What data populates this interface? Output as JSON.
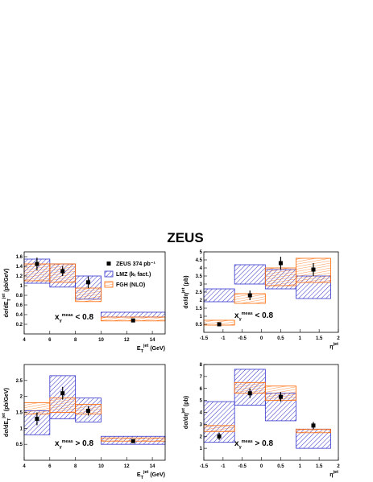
{
  "title": "ZEUS",
  "chart_data": [
    {
      "type": "histogram",
      "bins": [
        4,
        6,
        8,
        10,
        15
      ],
      "xlim": [
        4,
        15
      ],
      "xticks": [
        4,
        6,
        8,
        10,
        12,
        14
      ],
      "ylim": [
        0,
        1.7
      ],
      "yticks": [
        0.2,
        0.4,
        0.6,
        0.8,
        1,
        1.2,
        1.4,
        1.6
      ],
      "x_label": [
        "E",
        "T",
        "jet",
        " (GeV)"
      ],
      "y_label": [
        "dσ/dE",
        "T",
        "jet",
        " (pb/GeV)"
      ],
      "annotation": [
        "x",
        "γ",
        "meas",
        " < 0.8"
      ],
      "series": [
        {
          "name": "LMZ (kₜ fact.)",
          "color": "#3333cc",
          "low": [
            1.05,
            0.97,
            0.72,
            0.35
          ],
          "high": [
            1.55,
            1.45,
            1.2,
            0.45
          ]
        },
        {
          "name": "FGH (NLO)",
          "color": "#ff6600",
          "low": [
            1.1,
            1.07,
            0.67,
            0.27
          ],
          "high": [
            1.45,
            1.45,
            0.95,
            0.35
          ]
        },
        {
          "name": "ZEUS 374 pb⁻¹",
          "color": "#000000",
          "values": [
            1.45,
            1.3,
            1.07,
            0.28
          ],
          "errors": [
            0.13,
            0.1,
            0.12,
            0.03
          ]
        }
      ]
    },
    {
      "type": "histogram",
      "bins": [
        -1.5,
        -0.7,
        0.1,
        0.9,
        1.8
      ],
      "xlim": [
        -1.5,
        2
      ],
      "xticks": [
        -1.5,
        -1,
        -0.5,
        0,
        0.5,
        1,
        1.5,
        2
      ],
      "ylim": [
        0,
        5
      ],
      "yticks": [
        0.5,
        1,
        1.5,
        2,
        2.5,
        3,
        3.5,
        4,
        4.5,
        5
      ],
      "x_label": [
        "η",
        "jet"
      ],
      "y_label": [
        "dσ/dη",
        "jet",
        " (pb)"
      ],
      "annotation": [
        "x",
        "γ",
        "meas",
        " < 0.8"
      ],
      "series": [
        {
          "color": "#3333cc",
          "low": [
            1.9,
            3.0,
            2.7,
            2.1
          ],
          "high": [
            2.7,
            4.2,
            3.9,
            3.5
          ]
        },
        {
          "color": "#ff6600",
          "low": [
            0.45,
            1.8,
            2.9,
            3.1
          ],
          "high": [
            0.75,
            2.4,
            4.0,
            4.6
          ]
        },
        {
          "color": "#000000",
          "values": [
            0.5,
            2.3,
            4.3,
            3.9
          ],
          "errors": [
            0.1,
            0.3,
            0.4,
            0.4
          ]
        }
      ]
    },
    {
      "type": "histogram",
      "bins": [
        4,
        6,
        8,
        10,
        15
      ],
      "xlim": [
        4,
        15
      ],
      "xticks": [
        4,
        6,
        8,
        10,
        12,
        14
      ],
      "ylim": [
        0,
        3
      ],
      "yticks": [
        0.5,
        1,
        1.5,
        2,
        2.5
      ],
      "x_label": [
        "E",
        "T",
        "jet",
        " (GeV)"
      ],
      "y_label": [
        "dσ/dE",
        "T",
        "jet",
        " (pb/GeV)"
      ],
      "annotation": [
        "x",
        "γ",
        "meas",
        " > 0.8"
      ],
      "series": [
        {
          "color": "#3333cc",
          "low": [
            0.8,
            1.3,
            1.2,
            0.5
          ],
          "high": [
            1.55,
            2.65,
            1.95,
            0.75
          ]
        },
        {
          "color": "#ff6600",
          "low": [
            1.45,
            1.5,
            1.45,
            0.6
          ],
          "high": [
            1.8,
            1.95,
            1.75,
            0.7
          ]
        },
        {
          "color": "#000000",
          "values": [
            1.3,
            2.1,
            1.55,
            0.6
          ],
          "errors": [
            0.2,
            0.2,
            0.15,
            0.05
          ]
        }
      ]
    },
    {
      "type": "histogram",
      "bins": [
        -1.5,
        -0.7,
        0.1,
        0.9,
        1.8
      ],
      "xlim": [
        -1.5,
        2
      ],
      "xticks": [
        -1.5,
        -1,
        -0.5,
        0,
        0.5,
        1,
        1.5,
        2
      ],
      "ylim": [
        0,
        8
      ],
      "yticks": [
        1,
        2,
        3,
        4,
        5,
        6,
        7,
        8
      ],
      "x_label": [
        "η",
        "jet"
      ],
      "y_label": [
        "dσ/dη",
        "jet",
        " (pb)"
      ],
      "annotation": [
        "x",
        "γ",
        "meas",
        " > 0.8"
      ],
      "series": [
        {
          "color": "#3333cc",
          "low": [
            1.5,
            4.6,
            3.3,
            1.0
          ],
          "high": [
            4.9,
            7.6,
            5.6,
            2.6
          ]
        },
        {
          "color": "#ff6600",
          "low": [
            2.4,
            5.6,
            5.0,
            2.3
          ],
          "high": [
            2.9,
            6.5,
            6.2,
            2.6
          ]
        },
        {
          "color": "#000000",
          "values": [
            2.0,
            5.6,
            5.3,
            2.9
          ],
          "errors": [
            0.3,
            0.4,
            0.4,
            0.3
          ]
        }
      ]
    }
  ]
}
